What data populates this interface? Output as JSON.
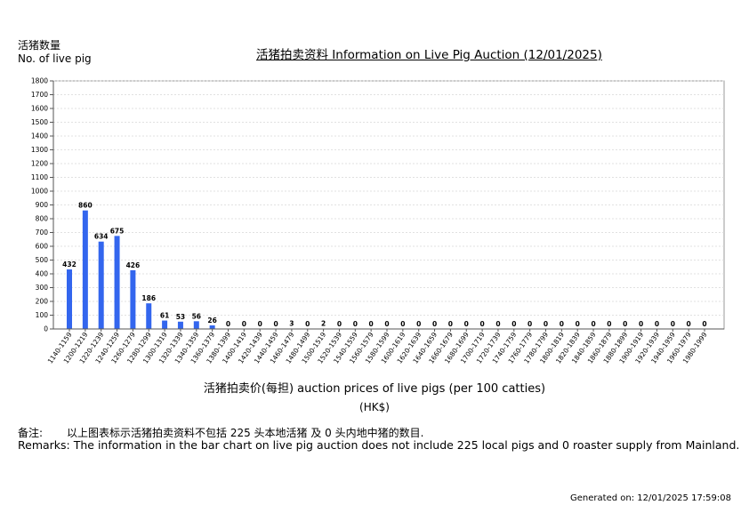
{
  "header": {
    "ylabel_zh": "活猪数量",
    "ylabel_en": "No. of live pig",
    "title": "活猪拍卖资料 Information on Live Pig Auction (12/01/2025)"
  },
  "chart_data": {
    "type": "bar",
    "title": "活猪拍卖资料 Information on Live Pig Auction (12/01/2025)",
    "ylabel": "活猪数量 No. of live pig",
    "xlabel": "活猪拍卖价(每担) auction prices of live pigs (per 100 catties)",
    "xunit": "(HK$)",
    "ylim": [
      0,
      1800
    ],
    "yticks": [
      0,
      100,
      200,
      300,
      400,
      500,
      600,
      700,
      800,
      900,
      1000,
      1100,
      1200,
      1300,
      1400,
      1500,
      1600,
      1700,
      1800
    ],
    "grid": true,
    "bar_color": "#3366ee",
    "categories": [
      "1140-1159",
      "1200-1219",
      "1220-1239",
      "1240-1259",
      "1260-1279",
      "1280-1299",
      "1300-1319",
      "1320-1339",
      "1340-1359",
      "1360-1379",
      "1380-1399",
      "1400-1419",
      "1420-1439",
      "1440-1459",
      "1460-1479",
      "1480-1499",
      "1500-1519",
      "1520-1539",
      "1540-1559",
      "1560-1579",
      "1580-1599",
      "1600-1619",
      "1620-1639",
      "1640-1659",
      "1660-1679",
      "1680-1699",
      "1700-1719",
      "1720-1739",
      "1740-1759",
      "1760-1779",
      "1780-1799",
      "1800-1819",
      "1820-1839",
      "1840-1859",
      "1860-1879",
      "1880-1899",
      "1900-1919",
      "1920-1939",
      "1940-1959",
      "1960-1979",
      "1980-1999"
    ],
    "values": [
      432,
      860,
      634,
      675,
      426,
      186,
      61,
      53,
      56,
      26,
      0,
      0,
      0,
      0,
      3,
      0,
      2,
      0,
      0,
      0,
      0,
      0,
      0,
      0,
      0,
      0,
      0,
      0,
      0,
      0,
      0,
      0,
      0,
      0,
      0,
      0,
      0,
      0,
      0,
      0,
      0
    ]
  },
  "footer": {
    "remark_zh_label": "备注:",
    "remark_zh": "以上图表标示活猪拍卖资料不包括 225 头本地活猪 及 0 头内地中猪的数目.",
    "remark_en": "Remarks: The information in the bar chart on live pig auction does not include 225 local pigs and 0 roaster supply from Mainland.",
    "generated": "Generated on: 12/01/2025 17:59:08"
  }
}
